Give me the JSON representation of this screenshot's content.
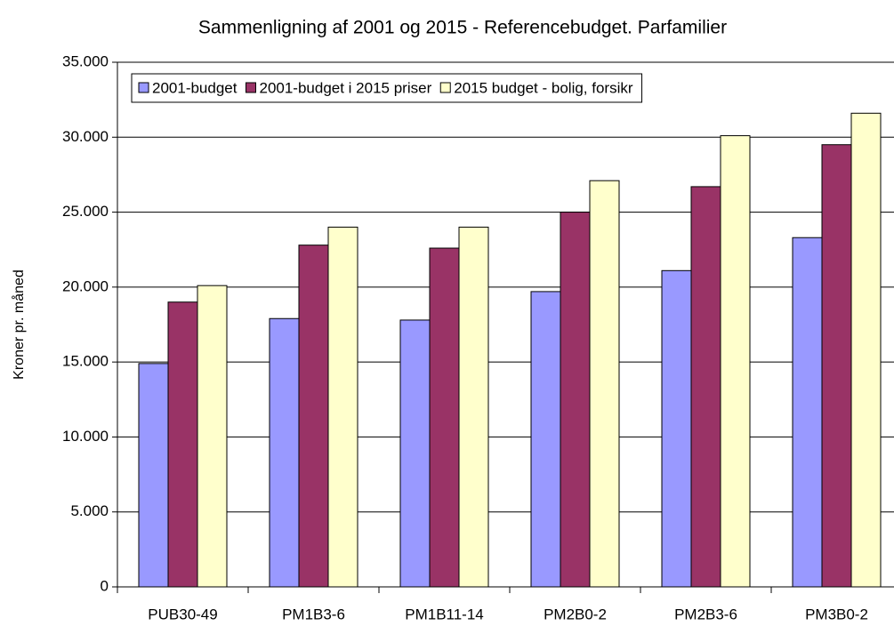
{
  "chart_data": {
    "type": "bar",
    "title": "Sammenligning af 2001 og 2015 - Referencebudget. Parfamilier",
    "y_label": "Kroner pr. måned",
    "categories": [
      "PUB30-49",
      "PM1B3-6",
      "PM1B11-14",
      "PM2B0-2",
      "PM2B3-6",
      "PM3B0-2"
    ],
    "series": [
      {
        "name": "2001-budget",
        "color": "#9999ff",
        "values": [
          14900,
          17900,
          17800,
          19700,
          21100,
          23300
        ]
      },
      {
        "name": "2001-budget i 2015 priser",
        "color": "#993366",
        "values": [
          19000,
          22800,
          22600,
          25000,
          26700,
          29500
        ]
      },
      {
        "name": "2015 budget - bolig, forsikr",
        "color": "#ffffcc",
        "values": [
          20100,
          24000,
          24000,
          27100,
          30100,
          31600
        ]
      }
    ],
    "ylim": [
      0,
      35000
    ],
    "yticks": [
      0,
      {
        "value": 5000,
        "label": "5.000"
      },
      {
        "value": 10000,
        "label": "10.000"
      },
      {
        "value": 15000,
        "label": "15.000"
      },
      {
        "value": 20000,
        "label": "20.000"
      },
      {
        "value": 25000,
        "label": "25.000"
      },
      {
        "value": 30000,
        "label": "30.000"
      },
      {
        "value": 35000,
        "label": "35.000"
      }
    ],
    "grid": true,
    "legend": "top-left"
  }
}
